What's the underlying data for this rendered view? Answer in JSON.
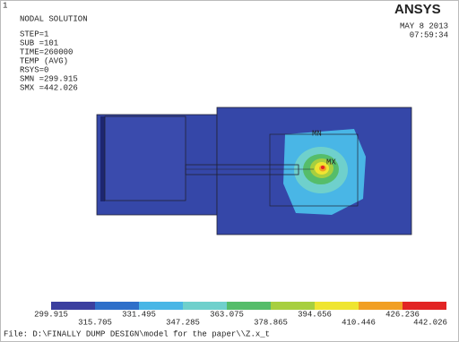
{
  "header": {
    "index": "1",
    "title": "NODAL SOLUTION",
    "info": [
      "STEP=1",
      "SUB =101",
      "TIME=260000",
      "TEMP     (AVG)",
      "RSYS=0",
      "SMN =299.915",
      "SMX =442.026"
    ],
    "logo": "ANSYS",
    "date": "MAY  8 2013",
    "time": "07:59:34"
  },
  "plot": {
    "min_label": "MN",
    "max_label": "MX"
  },
  "legend": {
    "colors": [
      "#3b3f9f",
      "#2e6fc9",
      "#49b6e6",
      "#6fd0cc",
      "#55bd6a",
      "#a7cf3f",
      "#efe531",
      "#f19f24",
      "#e22424"
    ],
    "labels": [
      "299.915",
      "315.705",
      "331.495",
      "347.285",
      "363.075",
      "378.865",
      "394.656",
      "410.446",
      "426.236",
      "442.026"
    ]
  },
  "footer": {
    "file": "File: D:\\FINALLY DUMP DESIGN\\model for the paper\\\\Z.x_t"
  }
}
